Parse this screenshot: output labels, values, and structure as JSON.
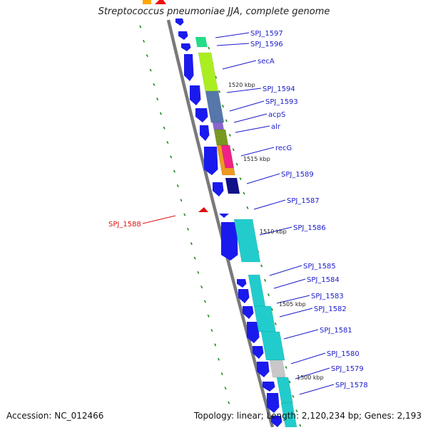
{
  "title": "Streptococcus pneumoniae JJA, complete genome",
  "footer": {
    "accession": "Accession: NC_012466",
    "stats": "Topology: linear; Length: 2,120,234 bp; Genes: 2,193"
  },
  "colors": {
    "backbone": "#7a7a7a",
    "gene_strand": "#1a1aee",
    "gene_label": "#1a1acc",
    "highlight_label": "#dd1111",
    "tick": "#1a8a1a",
    "scale_label": "#222222"
  },
  "scale_labels": [
    "1520 kbp",
    "1515 kbp",
    "1510 kbp",
    "1505 kbp",
    "1500 kbp"
  ],
  "gene_labels": [
    "SPJ_1597",
    "SPJ_1596",
    "secA",
    "SPJ_1594",
    "SPJ_1593",
    "acpS",
    "alr",
    "recG",
    "SPJ_1589",
    "SPJ_1587",
    "SPJ_1586",
    "SPJ_1585",
    "SPJ_1584",
    "SPJ_1583",
    "SPJ_1582",
    "SPJ_1581",
    "SPJ_1580",
    "SPJ_1579",
    "SPJ_1578"
  ],
  "highlighted_gene": "SPJ_1588"
}
